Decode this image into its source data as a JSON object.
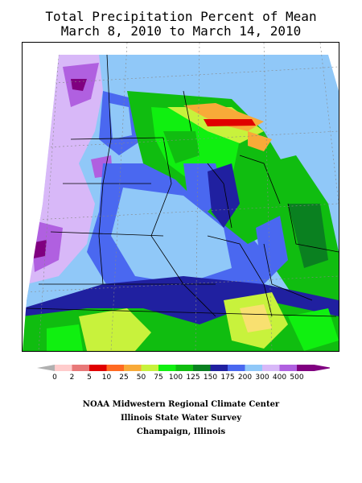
{
  "title": {
    "line1": "Total Precipitation Percent of Mean",
    "line2": "March 8, 2010 to March 14, 2010"
  },
  "legend": {
    "colors": [
      "#ffcccc",
      "#e87878",
      "#e00000",
      "#ff6a22",
      "#f8aa38",
      "#c8f23c",
      "#10f010",
      "#10bd10",
      "#0a8020",
      "#2020a0",
      "#4a68f0",
      "#90c8f8",
      "#d8b8f8",
      "#b060e0",
      "#800080"
    ],
    "labels": [
      "0",
      "2",
      "5",
      "10",
      "25",
      "50",
      "75",
      "100",
      "125",
      "150",
      "175",
      "200",
      "300",
      "400",
      "500"
    ]
  },
  "credits": {
    "line1": "NOAA Midwestern Regional Climate Center",
    "line2": "Illinois State Water Survey",
    "line3": "Champaign, Illinois"
  }
}
